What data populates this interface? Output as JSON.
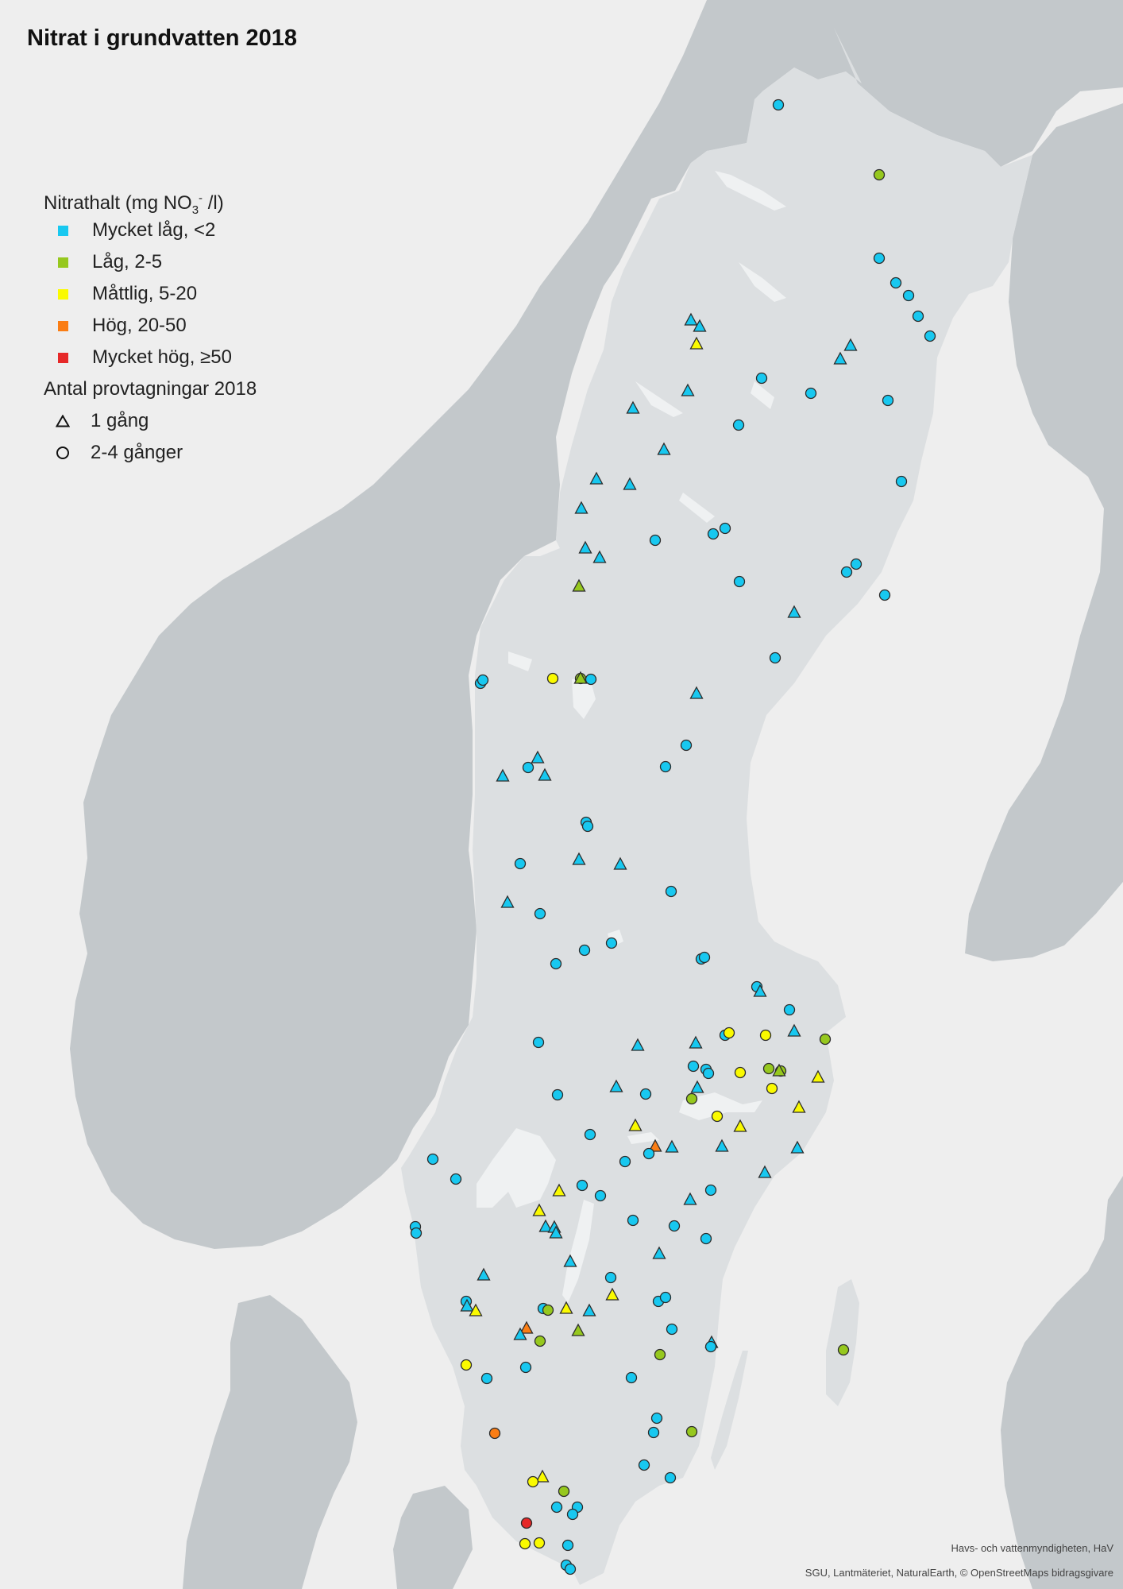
{
  "title": "Nitrat i grundvatten 2018",
  "legend": {
    "concentration_heading_prefix": "Nitrathalt (mg NO",
    "concentration_heading_sub": "3",
    "concentration_heading_sup": "-",
    "concentration_heading_suffix": " /l)",
    "classes": [
      {
        "label": "Mycket låg, <2",
        "color": "#18c8f0"
      },
      {
        "label": "Låg, 2-5",
        "color": "#96c81e"
      },
      {
        "label": "Måttlig, 5-20",
        "color": "#fafa00"
      },
      {
        "label": "Hög, 20-50",
        "color": "#fa7d14"
      },
      {
        "label": "Mycket hög, ≥50",
        "color": "#e62828"
      }
    ],
    "sampling_heading": "Antal provtagningar 2018",
    "sampling": [
      {
        "label": "1 gång",
        "symbol": "triangle"
      },
      {
        "label": "2-4 gånger",
        "symbol": "circle"
      }
    ]
  },
  "credits": {
    "line1": "Havs- och vattenmyndigheten, HaV",
    "line2": "SGU, Lantmäteriet, NaturalEarth, © OpenStreetMaps bidragsgivare"
  },
  "colors": {
    "sea": "#eeeeee",
    "sweden": "#dcdfe1",
    "neighbors": "#c3c8cb",
    "lakes": "#eff1f2",
    "very_low": "#18c8f0",
    "low": "#96c81e",
    "moderate": "#fafa00",
    "high": "#fa7d14",
    "very_high": "#e62828"
  }
}
